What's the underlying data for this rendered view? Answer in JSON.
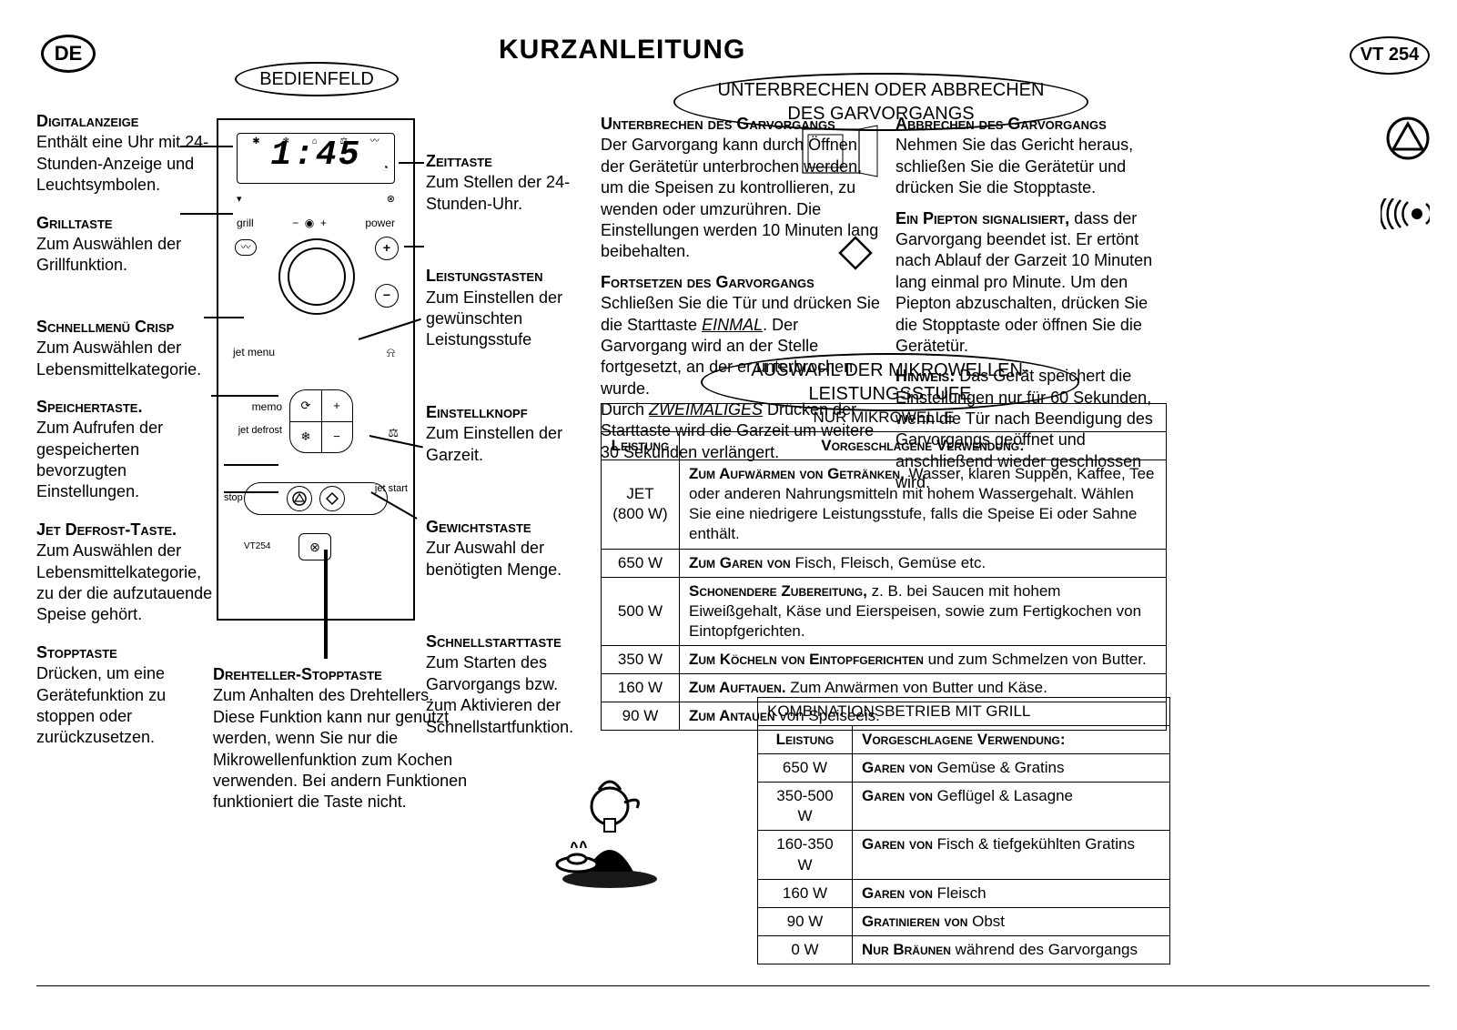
{
  "title": "KURZANLEITUNG",
  "badges": {
    "de": "DE",
    "vt": "VT 254"
  },
  "ovals": {
    "bedienfeld": "BEDIENFELD",
    "unterbrechen": "UNTERBRECHEN ODER ABBRECHEN DES GARVORGANGS",
    "auswahl": "AUSWAHL DER MIKROWELLEN-LEISTUNGSSTUFE"
  },
  "panel": {
    "time": "1:45",
    "grill": "grill",
    "power": "power",
    "jet_menu": "jet menu",
    "memo": "memo",
    "jet_defrost": "jet defrost",
    "stop": "stop",
    "jet_start": "jet start",
    "model": "VT254"
  },
  "left_items": [
    {
      "t": "Digitalanzeige",
      "b": "Enthält eine Uhr mit 24-Stunden-Anzeige und Leuchtsymbolen."
    },
    {
      "t": "Grilltaste",
      "b": "Zum Auswählen der Grillfunktion."
    },
    {
      "t": "Schnellmenü Crisp",
      "b": "Zum Auswählen der Lebensmittelkategorie."
    },
    {
      "t": "Speichertaste.",
      "b": "Zum Aufrufen der gespeicherten bevorzugten Einstellungen."
    },
    {
      "t": "Jet Defrost-Taste.",
      "b": "Zum Auswählen der Lebensmittelkategorie, zu der die aufzutauende Speise gehört."
    },
    {
      "t": "Stopptaste",
      "b": "Drücken, um eine Gerätefunktion zu stoppen oder zurückzusetzen."
    }
  ],
  "right_items": [
    {
      "t": "Zeittaste",
      "b": "Zum Stellen der 24-Stunden-Uhr."
    },
    {
      "t": "Leistungstasten",
      "b": "Zum Einstellen der gewünschten Leistungsstufe"
    },
    {
      "t": "Einstellknopf",
      "b": "Zum Einstellen der Garzeit."
    },
    {
      "t": "Gewichtstaste",
      "b": "Zur Auswahl der benötigten Menge."
    },
    {
      "t": "Schnellstarttaste",
      "b": "Zum Starten des Garvorgangs bzw. zum Aktivieren der Schnellstartfunktion."
    }
  ],
  "dreh": {
    "t": "Drehteller-Stopptaste",
    "b": "Zum Anhalten des Drehtellers. Diese Funktion kann nur genutzt werden, wenn Sie nur die Mikrowellenfunktion zum Kochen verwenden. Bei andern Funktionen funktioniert die Taste nicht."
  },
  "r_left": {
    "s1_t": "Unterbrechen des Garvorgangs",
    "s1_b": "Der Garvorgang kann durch Öffnen der Gerätetür unterbrochen werden, um die Speisen zu kontrollieren, zu wenden oder umzurühren. Die Einstellungen werden 10 Minuten lang beibehalten.",
    "s2_t": "Fortsetzen des Garvorgangs",
    "s2_b1": "Schließen Sie die Tür und drücken Sie die Starttaste ",
    "s2_u": "EINMAL",
    "s2_b2": ". Der Garvorgang wird an der Stelle fortgesetzt, an der er unterbrochen wurde.",
    "s2_b3a": "Durch ",
    "s2_u2": "ZWEIMALIGES",
    "s2_b3b": " Drücken der Starttaste wird die Garzeit um weitere 30 Sekunden verlängert."
  },
  "r_right": {
    "s1_t": "Abbrechen des Garvorgangs",
    "s1_b": "Nehmen Sie das Gericht heraus, schließen Sie die Gerätetür und drücken Sie die Stopptaste.",
    "s2_lead": "Ein Piepton signalisiert,",
    "s2_b": " dass der Garvorgang beendet ist. Er ertönt nach Ablauf der Garzeit 10 Minuten lang einmal pro Minute. Um den Piepton abzuschalten, drücken Sie die Stopptaste oder öffnen Sie die Gerätetür.",
    "s3_lead": "Hinweis:",
    "s3_b": " Das Gerät speichert die Einstellungen nur für 60 Sekunden, wenn die Tür nach Beendigung des Garvorgangs geöffnet und anschließend wieder geschlossen wird."
  },
  "table_main": {
    "title": "NUR MIKROWELLE",
    "h1": "Leistung",
    "h2": "Vorgeschlagene Verwendung:",
    "rows": [
      {
        "p": "JET (800 W)",
        "lead": "Zum Aufwärmen von Getränken,",
        "rest": " Wasser, klaren Suppen, Kaffee, Tee oder anderen Nahrungsmitteln mit hohem Wassergehalt. Wählen Sie eine niedrigere Leistungsstufe, falls die Speise Ei oder Sahne enthält."
      },
      {
        "p": "650 W",
        "lead": "Zum Garen von",
        "rest": " Fisch, Fleisch, Gemüse etc."
      },
      {
        "p": "500 W",
        "lead": "Schonendere Zubereitung,",
        "rest": " z. B. bei Saucen mit hohem Eiweißgehalt, Käse und Eierspeisen, sowie zum Fertigkochen von Eintopfgerichten."
      },
      {
        "p": "350 W",
        "lead": "Zum Köcheln von Eintopfgerichten",
        "rest": " und zum Schmelzen von Butter."
      },
      {
        "p": "160 W",
        "lead": "Zum Auftauen.",
        "rest": " Zum Anwärmen von Butter und Käse."
      },
      {
        "p": "90 W",
        "lead": "Zum Antauen",
        "rest": " von Speiseeis."
      }
    ]
  },
  "table_grill": {
    "title": "KOMBINATIONSBETRIEB MIT GRILL",
    "h1": "Leistung",
    "h2": "Vorgeschlagene Verwendung:",
    "rows": [
      {
        "p": "650 W",
        "lead": "Garen von",
        "rest": " Gemüse & Gratins"
      },
      {
        "p": "350-500 W",
        "lead": "Garen von",
        "rest": " Geflügel & Lasagne"
      },
      {
        "p": "160-350 W",
        "lead": "Garen von",
        "rest": " Fisch & tiefgekühlten Gratins"
      },
      {
        "p": "160 W",
        "lead": "Garen von",
        "rest": " Fleisch"
      },
      {
        "p": "90 W",
        "lead": "Gratinieren von",
        "rest": " Obst"
      },
      {
        "p": "0 W",
        "lead": "Nur Bräunen",
        "rest": " während des Garvorgangs"
      }
    ]
  }
}
